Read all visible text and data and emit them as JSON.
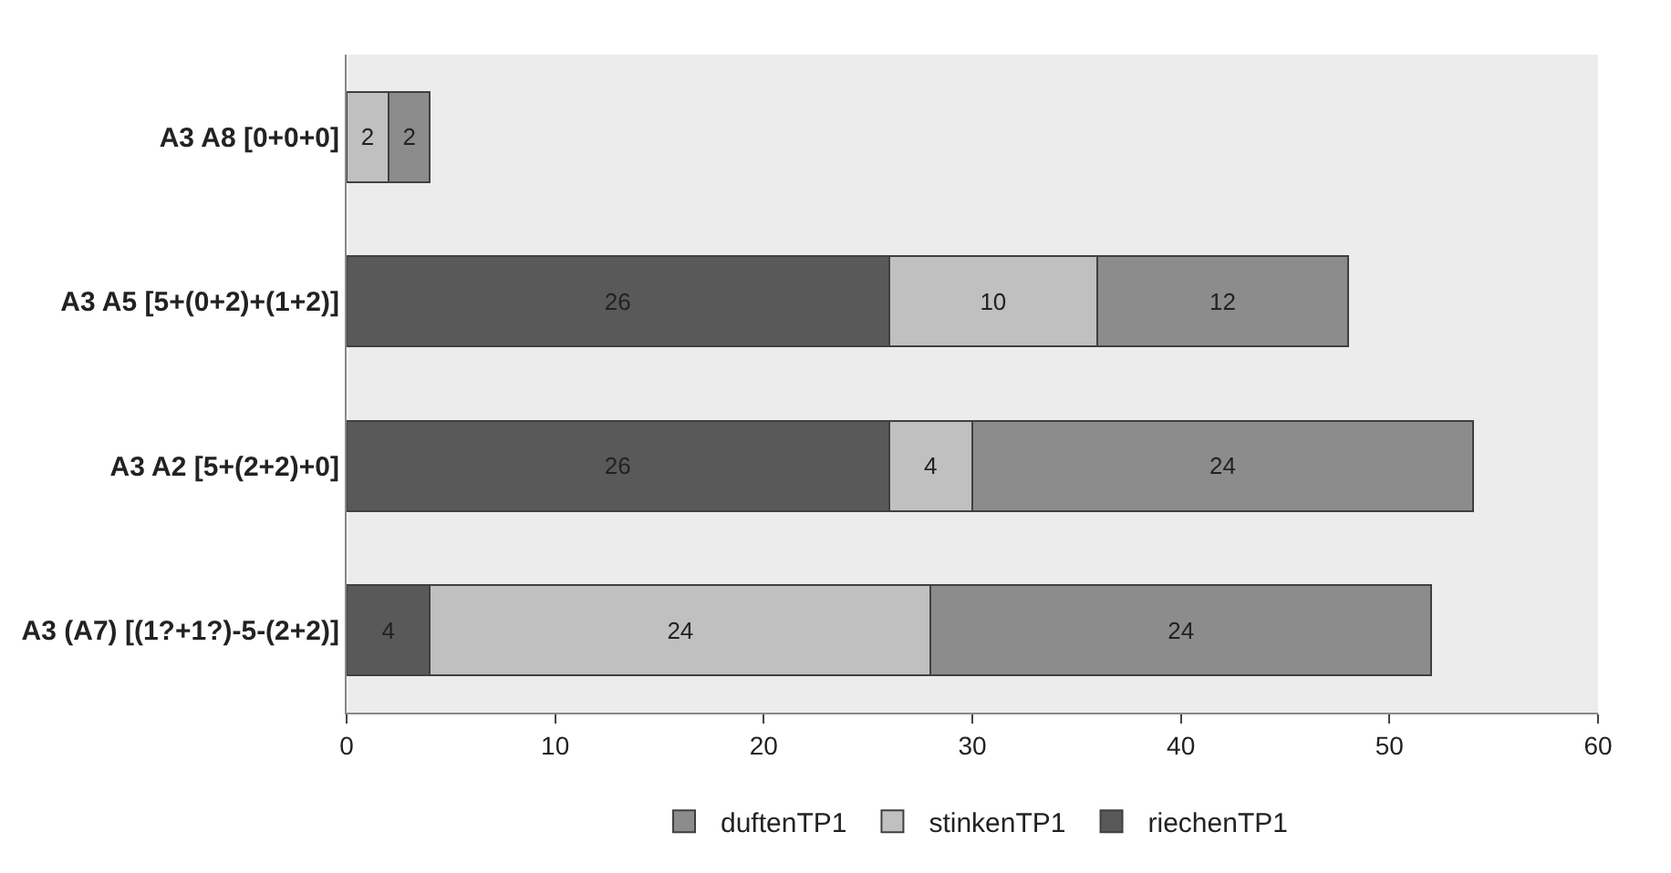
{
  "chart_data": {
    "type": "bar",
    "orientation": "horizontal",
    "stacked": true,
    "categories": [
      "A3 A8 [0+0+0]",
      "A3 A5 [5+(0+2)+(1+2)]",
      "A3 A2 [5+(2+2)+0]",
      "A3 (A7) [(1?+1?)-5-(2+2)]"
    ],
    "series": [
      {
        "name": "riechenTP1",
        "color": "#595959",
        "values": [
          0,
          26,
          26,
          4
        ],
        "value_labels": [
          null,
          "26",
          "26",
          "4"
        ]
      },
      {
        "name": "stinkenTP1",
        "color": "#c0c0c0",
        "values": [
          2,
          10,
          4,
          24
        ],
        "value_labels": [
          "2",
          "10",
          "4",
          "24"
        ]
      },
      {
        "name": "duftenTP1",
        "color": "#8c8c8c",
        "values": [
          2,
          12,
          24,
          24
        ],
        "value_labels": [
          "2",
          "12",
          "24",
          "24"
        ]
      }
    ],
    "xlim": [
      0,
      60
    ],
    "xticks": [
      0,
      10,
      20,
      30,
      40,
      50,
      60
    ],
    "grid": false,
    "legend": "bottom"
  }
}
